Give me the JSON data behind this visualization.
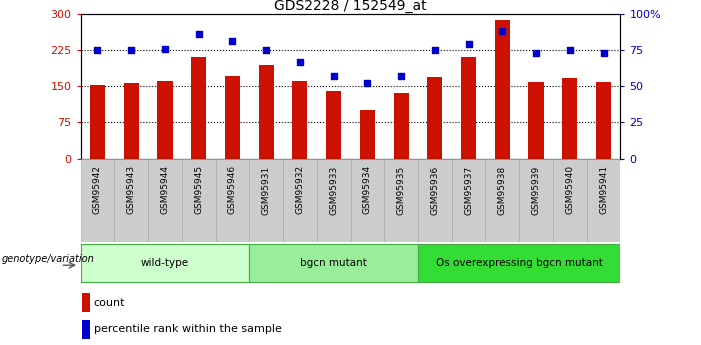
{
  "title": "GDS2228 / 152549_at",
  "samples": [
    "GSM95942",
    "GSM95943",
    "GSM95944",
    "GSM95945",
    "GSM95946",
    "GSM95931",
    "GSM95932",
    "GSM95933",
    "GSM95934",
    "GSM95935",
    "GSM95936",
    "GSM95937",
    "GSM95938",
    "GSM95939",
    "GSM95940",
    "GSM95941"
  ],
  "counts": [
    152,
    157,
    160,
    210,
    172,
    195,
    160,
    140,
    100,
    135,
    170,
    210,
    288,
    158,
    167,
    158
  ],
  "percentiles": [
    75,
    75,
    76,
    86,
    81,
    75,
    67,
    57,
    52,
    57,
    75,
    79,
    88,
    73,
    75,
    73
  ],
  "groups": [
    {
      "label": "wild-type",
      "start": 0,
      "end": 5,
      "color": "#ccffcc"
    },
    {
      "label": "bgcn mutant",
      "start": 5,
      "end": 10,
      "color": "#99ee99"
    },
    {
      "label": "Os overexpressing bgcn mutant",
      "start": 10,
      "end": 16,
      "color": "#33dd33"
    }
  ],
  "bar_color": "#cc1100",
  "scatter_color": "#0000cc",
  "ylim_left": [
    0,
    300
  ],
  "ylim_right": [
    0,
    100
  ],
  "yticks_left": [
    0,
    75,
    150,
    225,
    300
  ],
  "ytick_labels_left": [
    "0",
    "75",
    "150",
    "225",
    "300"
  ],
  "yticks_right": [
    0,
    25,
    50,
    75,
    100
  ],
  "ytick_labels_right": [
    "0",
    "25",
    "50",
    "75",
    "100%"
  ],
  "hlines": [
    75,
    150,
    225
  ],
  "legend_count_label": "count",
  "legend_percentile_label": "percentile rank within the sample",
  "genotype_label": "genotype/variation",
  "background_color": "#ffffff",
  "tick_bg_color": "#cccccc",
  "group_border_color": "#44aa44"
}
